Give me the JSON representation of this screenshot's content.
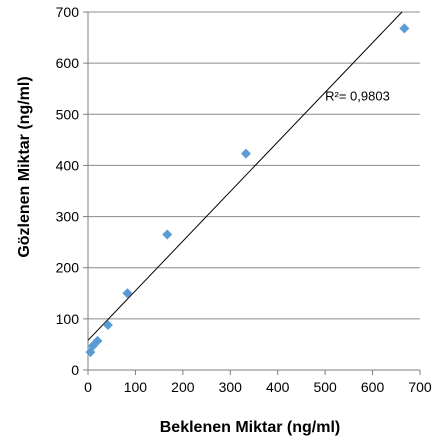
{
  "chart_data": {
    "type": "scatter",
    "xlabel": "Beklenen Miktar (ng/ml)",
    "ylabel": "Gözlenen Miktar (ng/ml)",
    "xlim": [
      0,
      700
    ],
    "ylim": [
      0,
      700
    ],
    "x_ticks": [
      0,
      100,
      200,
      300,
      400,
      500,
      600,
      700
    ],
    "y_ticks": [
      0,
      100,
      200,
      300,
      400,
      500,
      600,
      700
    ],
    "grid": "horizontal",
    "marker": "diamond",
    "marker_color": "#5B9BD5",
    "trendline_color": "#000000",
    "points": [
      {
        "x": 5,
        "y": 35
      },
      {
        "x": 10,
        "y": 47
      },
      {
        "x": 20,
        "y": 57
      },
      {
        "x": 42,
        "y": 88
      },
      {
        "x": 83,
        "y": 150
      },
      {
        "x": 167,
        "y": 265
      },
      {
        "x": 333,
        "y": 423
      },
      {
        "x": 667,
        "y": 668
      }
    ],
    "trendline": {
      "x": [
        0,
        662
      ],
      "y": [
        58,
        700
      ]
    },
    "annotation": "R²= 0,9803"
  }
}
